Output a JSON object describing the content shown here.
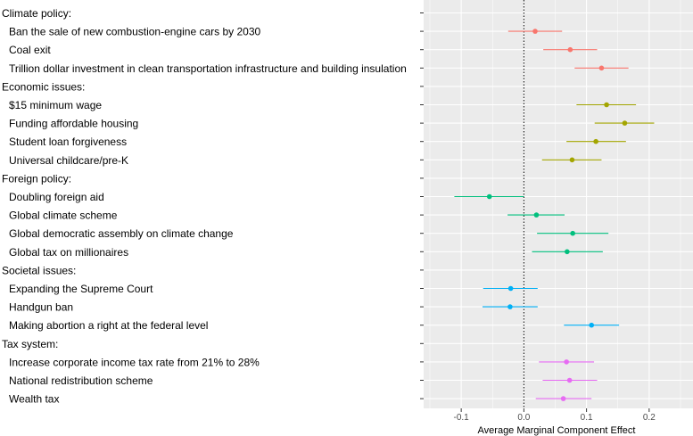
{
  "chart_data": {
    "type": "dot-errorbar",
    "title": "",
    "xlabel": "Average Marginal Component Effect",
    "ylabel": "",
    "xlim": [
      -0.16,
      0.27
    ],
    "xticks": [
      -0.1,
      0.0,
      0.1,
      0.2
    ],
    "xtick_labels": [
      "-0.1",
      "0.0",
      "0.1",
      "0.2"
    ],
    "reference_line": 0.0,
    "grid": true,
    "legend": "none",
    "group_colors": {
      "Climate policy:": "#F8766D",
      "Economic issues:": "#A3A500",
      "Foreign policy:": "#00BF7D",
      "Societal issues:": "#00B0F6",
      "Tax system:": "#E76BF3"
    },
    "rows": [
      {
        "label": "Climate policy:",
        "header": true,
        "group": "Climate policy:"
      },
      {
        "label": "Ban the sale of new combustion-engine cars by 2030",
        "group": "Climate policy:",
        "estimate": 0.018,
        "lower": -0.025,
        "upper": 0.061
      },
      {
        "label": "Coal exit",
        "group": "Climate policy:",
        "estimate": 0.074,
        "lower": 0.031,
        "upper": 0.117
      },
      {
        "label": "Trillion dollar investment in clean transportation infrastructure and building insulation",
        "group": "Climate policy:",
        "estimate": 0.124,
        "lower": 0.081,
        "upper": 0.167
      },
      {
        "label": "Economic issues:",
        "header": true,
        "group": "Economic issues:"
      },
      {
        "label": "$15 minimum wage",
        "group": "Economic issues:",
        "estimate": 0.132,
        "lower": 0.084,
        "upper": 0.179
      },
      {
        "label": "Funding affordable housing",
        "group": "Economic issues:",
        "estimate": 0.161,
        "lower": 0.113,
        "upper": 0.208
      },
      {
        "label": "Student loan forgiveness",
        "group": "Economic issues:",
        "estimate": 0.115,
        "lower": 0.068,
        "upper": 0.163
      },
      {
        "label": "Universal childcare/pre-K",
        "group": "Economic issues:",
        "estimate": 0.077,
        "lower": 0.029,
        "upper": 0.124
      },
      {
        "label": "Foreign policy:",
        "header": true,
        "group": "Foreign policy:"
      },
      {
        "label": "Doubling foreign aid",
        "group": "Foreign policy:",
        "estimate": -0.055,
        "lower": -0.111,
        "upper": 0.0
      },
      {
        "label": "Global climate scheme",
        "group": "Foreign policy:",
        "estimate": 0.02,
        "lower": -0.026,
        "upper": 0.065
      },
      {
        "label": "Global democratic assembly on climate change",
        "group": "Foreign policy:",
        "estimate": 0.078,
        "lower": 0.021,
        "upper": 0.135
      },
      {
        "label": "Global tax on millionaires",
        "group": "Foreign policy:",
        "estimate": 0.069,
        "lower": 0.013,
        "upper": 0.126
      },
      {
        "label": "Societal issues:",
        "header": true,
        "group": "Societal issues:"
      },
      {
        "label": "Expanding the Supreme Court",
        "group": "Societal issues:",
        "estimate": -0.021,
        "lower": -0.065,
        "upper": 0.022
      },
      {
        "label": "Handgun ban",
        "group": "Societal issues:",
        "estimate": -0.022,
        "lower": -0.066,
        "upper": 0.022
      },
      {
        "label": "Making abortion a right at the federal level",
        "group": "Societal issues:",
        "estimate": 0.108,
        "lower": 0.064,
        "upper": 0.152
      },
      {
        "label": "Tax system:",
        "header": true,
        "group": "Tax system:"
      },
      {
        "label": "Increase corporate income tax rate from 21% to 28%",
        "group": "Tax system:",
        "estimate": 0.068,
        "lower": 0.024,
        "upper": 0.112
      },
      {
        "label": "National redistribution scheme",
        "group": "Tax system:",
        "estimate": 0.073,
        "lower": 0.03,
        "upper": 0.117
      },
      {
        "label": "Wealth tax",
        "group": "Tax system:",
        "estimate": 0.063,
        "lower": 0.019,
        "upper": 0.108
      }
    ]
  }
}
